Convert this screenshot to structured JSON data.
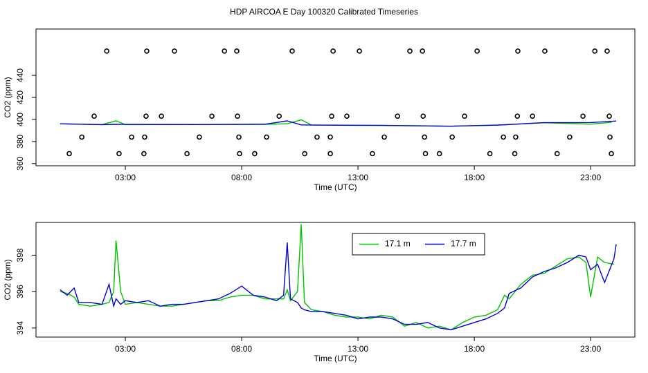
{
  "chart_data": [
    {
      "type": "line",
      "title": "HDP AIRCOA E  Day 100320  Calibrated Timeseries",
      "x_label": "Time (UTC)",
      "y_label": "CO2 (ppm)",
      "xlim": [
        -0.84,
        24.9
      ],
      "ylim": [
        358,
        482
      ],
      "xticks": [
        {
          "value": 3,
          "label": "03:00"
        },
        {
          "value": 8,
          "label": "08:00"
        },
        {
          "value": 13,
          "label": "13:00"
        },
        {
          "value": 18,
          "label": "18:00"
        },
        {
          "value": 23,
          "label": "23:00"
        }
      ],
      "yticks": [
        360,
        380,
        400,
        420,
        440
      ],
      "series": [
        {
          "mode": "points",
          "color": "#000000",
          "x": [
            2.2,
            3.92,
            5.11,
            7.26,
            7.79,
            10.17,
            11.93,
            13.06,
            15.23,
            15.77,
            18.12,
            19.87,
            21.03,
            23.18,
            23.71,
            1.66,
            3.89,
            4.55,
            6.72,
            7.82,
            9.61,
            11.87,
            12.52,
            14.7,
            15.8,
            17.58,
            19.85,
            20.5,
            22.67,
            23.8,
            1.13,
            3.27,
            3.83,
            6.18,
            7.88,
            9.07,
            11.24,
            11.81,
            14.13,
            15.86,
            17.05,
            19.25,
            19.78,
            22.1,
            23.83,
            0.59,
            2.73,
            3.8,
            5.65,
            7.91,
            8.56,
            10.71,
            11.81,
            13.62,
            15.9,
            16.5,
            18.67,
            19.74,
            21.56,
            23.89
          ],
          "values": [
            462,
            462,
            462,
            462,
            462,
            462,
            462,
            462,
            462,
            462,
            462,
            462,
            462,
            462,
            462,
            403,
            403,
            403,
            403,
            403,
            403,
            403,
            403,
            403,
            403,
            403,
            403,
            403,
            403,
            403,
            384,
            384,
            384,
            384,
            384,
            384,
            384,
            384,
            384,
            384,
            384,
            384,
            384,
            384,
            384,
            369,
            369,
            369,
            369,
            369,
            369,
            369,
            369,
            369,
            369,
            369,
            369,
            369,
            369,
            369
          ]
        },
        {
          "mode": "line",
          "color": "#00c000",
          "x": [
            0.2,
            2.0,
            2.6,
            3.0,
            6.0,
            9.0,
            9.96,
            10.56,
            11.0,
            14.0,
            17.0,
            19.0,
            21.0,
            23.0,
            23.9
          ],
          "values": [
            396.0,
            395.3,
            398.8,
            395.3,
            395.4,
            395.6,
            396.1,
            399.7,
            395.0,
            394.7,
            393.9,
            395.0,
            397.0,
            395.7,
            397.5
          ]
        },
        {
          "mode": "line",
          "color": "#0000d0",
          "x": [
            0.2,
            2.0,
            2.6,
            3.0,
            6.0,
            9.0,
            9.96,
            10.56,
            11.0,
            14.0,
            17.0,
            19.0,
            21.0,
            23.0,
            24.1
          ],
          "values": [
            396.1,
            395.3,
            395.6,
            395.5,
            395.4,
            395.7,
            398.7,
            395.1,
            394.9,
            394.6,
            393.9,
            394.8,
            397.1,
            397.2,
            398.6
          ]
        }
      ]
    },
    {
      "type": "line",
      "x_label": "Time (UTC)",
      "y_label": "CO2 (ppm)",
      "xlim": [
        -0.84,
        24.9
      ],
      "ylim": [
        393.5,
        399.8
      ],
      "xticks": [
        {
          "value": 3,
          "label": "03:00"
        },
        {
          "value": 8,
          "label": "08:00"
        },
        {
          "value": 13,
          "label": "13:00"
        },
        {
          "value": 18,
          "label": "18:00"
        },
        {
          "value": 23,
          "label": "23:00"
        }
      ],
      "yticks": [
        394,
        396,
        398
      ],
      "legend": "top",
      "series": [
        {
          "mode": "line",
          "name": "17.1 m",
          "color": "#00c000",
          "x": [
            0.2,
            0.5,
            0.8,
            1.0,
            1.5,
            2.0,
            2.3,
            2.5,
            2.6,
            2.8,
            3.0,
            3.5,
            4.0,
            4.5,
            5.0,
            5.5,
            6.0,
            6.5,
            7.0,
            7.5,
            8.0,
            8.5,
            9.0,
            9.5,
            9.8,
            9.96,
            10.1,
            10.4,
            10.56,
            10.7,
            11.0,
            11.5,
            12.0,
            12.5,
            13.0,
            13.5,
            14.0,
            14.5,
            15.0,
            15.5,
            16.0,
            16.5,
            17.0,
            17.5,
            18.0,
            18.5,
            19.0,
            19.3,
            19.5,
            20.0,
            20.5,
            21.0,
            21.5,
            22.0,
            22.5,
            22.8,
            23.0,
            23.3,
            23.6,
            24.0
          ],
          "values": [
            396.0,
            395.9,
            395.7,
            395.3,
            395.2,
            395.3,
            395.4,
            396.0,
            398.8,
            396.0,
            395.3,
            395.4,
            395.3,
            395.2,
            395.2,
            395.3,
            395.4,
            395.5,
            395.5,
            395.7,
            395.8,
            395.8,
            395.6,
            395.6,
            395.6,
            396.1,
            395.5,
            396.0,
            399.7,
            395.4,
            395.0,
            394.9,
            394.7,
            394.6,
            394.6,
            394.5,
            394.7,
            394.6,
            394.1,
            394.3,
            394.0,
            394.1,
            393.9,
            394.3,
            394.6,
            394.7,
            395.0,
            395.8,
            395.6,
            396.4,
            396.9,
            397.0,
            397.4,
            397.8,
            397.9,
            397.6,
            395.7,
            397.9,
            397.6,
            397.5
          ]
        },
        {
          "mode": "line",
          "name": "17.7 m",
          "color": "#0000d0",
          "x": [
            0.2,
            0.5,
            0.8,
            1.0,
            1.5,
            2.0,
            2.3,
            2.5,
            2.6,
            2.8,
            3.0,
            3.5,
            4.0,
            4.5,
            5.0,
            5.5,
            6.0,
            6.5,
            7.0,
            7.5,
            8.0,
            8.5,
            9.0,
            9.5,
            9.8,
            9.96,
            10.1,
            10.4,
            10.56,
            10.7,
            11.0,
            11.5,
            12.0,
            12.5,
            13.0,
            13.5,
            14.0,
            14.5,
            15.0,
            15.5,
            16.0,
            16.5,
            17.0,
            17.5,
            18.0,
            18.5,
            19.0,
            19.3,
            19.5,
            20.0,
            20.5,
            21.0,
            21.5,
            22.0,
            22.5,
            22.8,
            23.0,
            23.3,
            23.6,
            24.0,
            24.1
          ],
          "values": [
            396.1,
            395.8,
            396.2,
            395.4,
            395.4,
            395.3,
            396.4,
            395.2,
            395.6,
            395.3,
            395.5,
            395.4,
            395.5,
            395.2,
            395.3,
            395.3,
            395.4,
            395.5,
            395.6,
            395.9,
            396.3,
            395.8,
            395.7,
            395.5,
            395.8,
            398.7,
            395.6,
            395.4,
            395.1,
            395.0,
            394.9,
            394.9,
            394.8,
            394.7,
            394.5,
            394.6,
            394.6,
            394.5,
            394.2,
            394.2,
            394.3,
            394.0,
            393.9,
            394.1,
            394.3,
            394.5,
            394.8,
            395.1,
            395.9,
            396.2,
            396.8,
            397.1,
            397.3,
            397.6,
            398.0,
            397.9,
            397.2,
            397.5,
            396.5,
            397.8,
            398.6
          ]
        }
      ]
    }
  ]
}
